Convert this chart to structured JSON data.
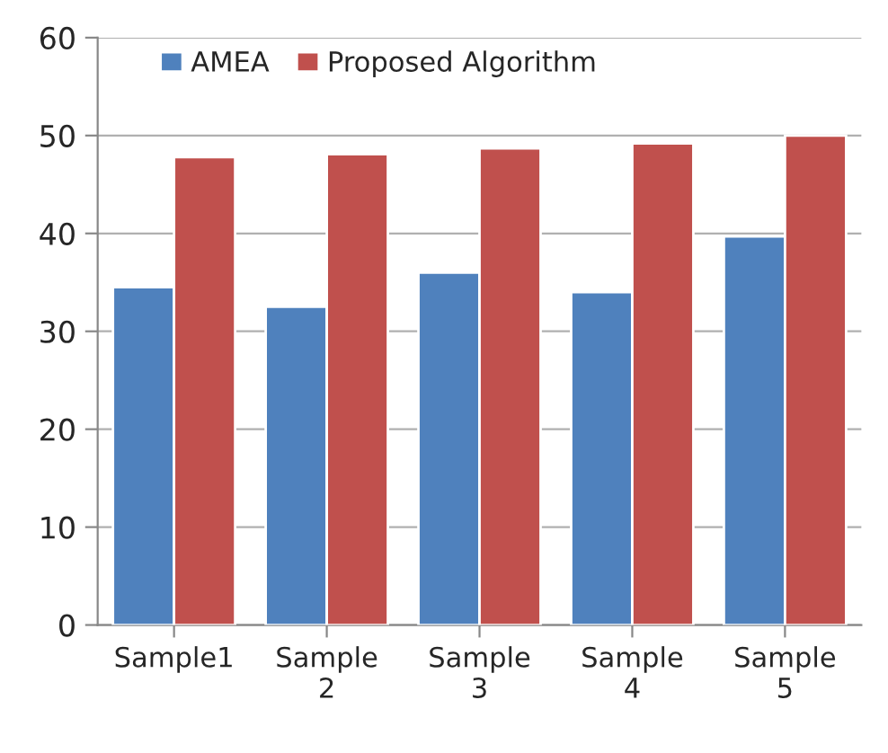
{
  "chart_data": {
    "type": "bar",
    "categories": [
      "Sample1",
      "Sample\n2",
      "Sample\n3",
      "Sample\n4",
      "Sample\n5"
    ],
    "series": [
      {
        "name": "AMEA",
        "color": "#4f81bd",
        "values": [
          34.5,
          32.5,
          36,
          34,
          39.7
        ]
      },
      {
        "name": "Proposed Algorithm",
        "color": "#c0504d",
        "values": [
          47.8,
          48.1,
          48.7,
          49.2,
          50
        ]
      }
    ],
    "ylim": [
      0,
      60
    ],
    "yticks": [
      0,
      10,
      20,
      30,
      40,
      50,
      60
    ],
    "grid": "y",
    "legend": "top left"
  }
}
